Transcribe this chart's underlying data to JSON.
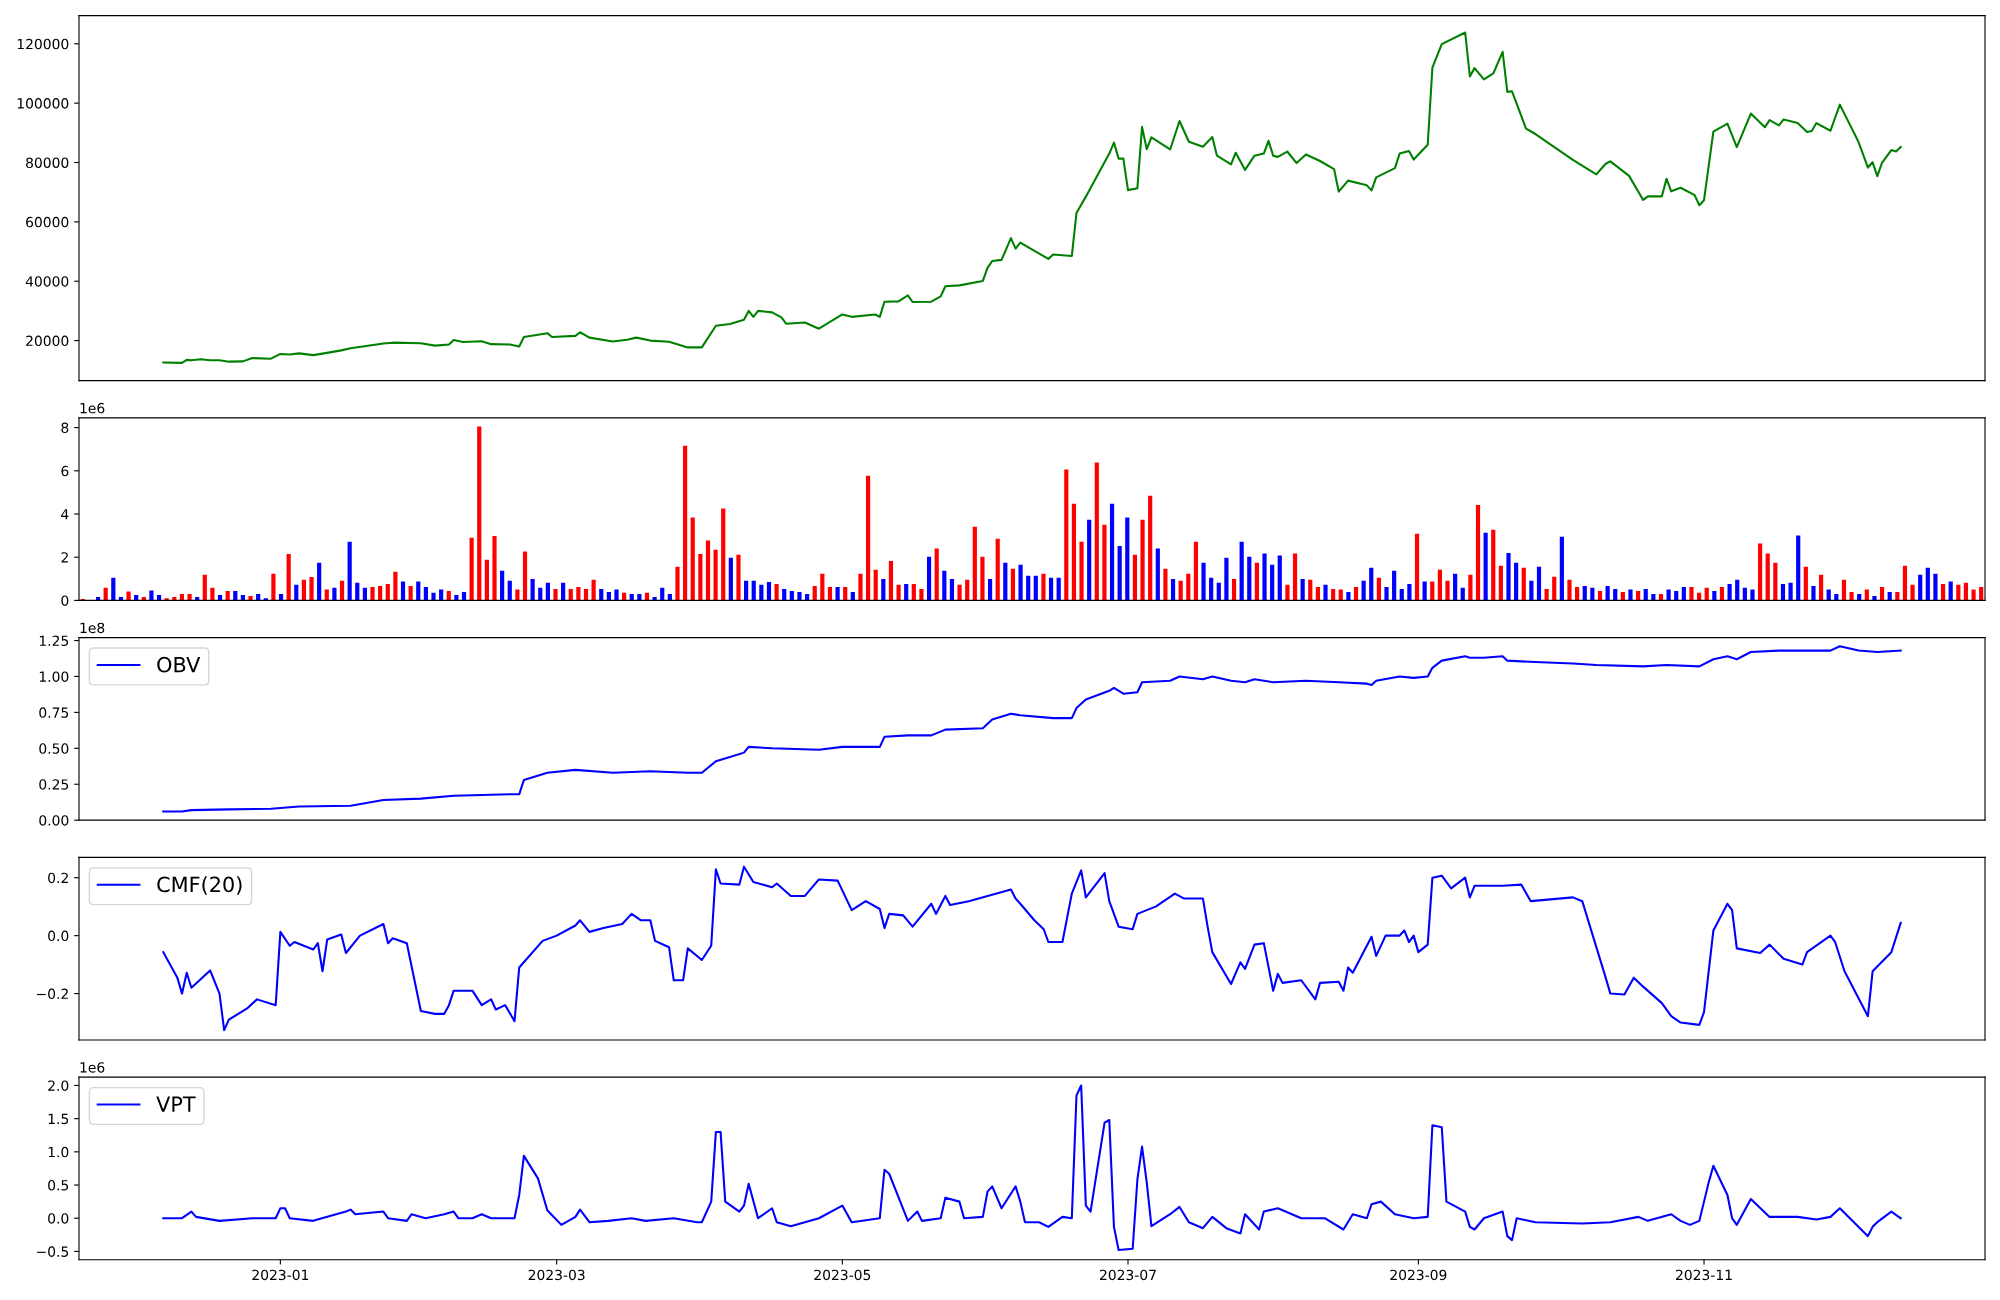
{
  "chart_data": [
    {
      "type": "line",
      "xlim": [
        "2022-11-19",
        "2023-12-31"
      ],
      "ylim": [
        6500,
        129500
      ],
      "yticks": [
        20000,
        40000,
        60000,
        80000,
        100000,
        120000
      ],
      "tick_labels": "y",
      "x": [
        "2022-12-07",
        "2022-12-11",
        "2022-12-12",
        "2022-12-13",
        "2022-12-15",
        "2022-12-17",
        "2022-12-19",
        "2022-12-21",
        "2022-12-24",
        "2022-12-26",
        "2022-12-30",
        "2023-01-01",
        "2023-01-03",
        "2023-01-05",
        "2023-01-08",
        "2023-01-10",
        "2023-01-14",
        "2023-01-16",
        "2023-01-23",
        "2023-01-25",
        "2023-01-31",
        "2023-02-03",
        "2023-02-06",
        "2023-02-07",
        "2023-02-09",
        "2023-02-13",
        "2023-02-15",
        "2023-02-19",
        "2023-02-21",
        "2023-02-22",
        "2023-02-27",
        "2023-02-28",
        "2023-03-05",
        "2023-03-06",
        "2023-03-08",
        "2023-03-13",
        "2023-03-16",
        "2023-03-18",
        "2023-03-21",
        "2023-03-25",
        "2023-03-29",
        "2023-04-01",
        "2023-04-04",
        "2023-04-07",
        "2023-04-10",
        "2023-04-11",
        "2023-04-12",
        "2023-04-13",
        "2023-04-16",
        "2023-04-18",
        "2023-04-19",
        "2023-04-23",
        "2023-04-26",
        "2023-05-01",
        "2023-05-03",
        "2023-05-08",
        "2023-05-09",
        "2023-05-10",
        "2023-05-13",
        "2023-05-15",
        "2023-05-16",
        "2023-05-20",
        "2023-05-22",
        "2023-05-23",
        "2023-05-26",
        "2023-05-31",
        "2023-06-01",
        "2023-06-02",
        "2023-06-04",
        "2023-06-06",
        "2023-06-07",
        "2023-06-08",
        "2023-06-14",
        "2023-06-15",
        "2023-06-19",
        "2023-06-20",
        "2023-06-22",
        "2023-06-27",
        "2023-06-28",
        "2023-06-29",
        "2023-06-30",
        "2023-07-01",
        "2023-07-03",
        "2023-07-04",
        "2023-07-05",
        "2023-07-06",
        "2023-07-10",
        "2023-07-12",
        "2023-07-14",
        "2023-07-17",
        "2023-07-19",
        "2023-07-20",
        "2023-07-23",
        "2023-07-24",
        "2023-07-26",
        "2023-07-28",
        "2023-07-30",
        "2023-07-31",
        "2023-08-01",
        "2023-08-02",
        "2023-08-04",
        "2023-08-06",
        "2023-08-08",
        "2023-08-11",
        "2023-08-14",
        "2023-08-15",
        "2023-08-17",
        "2023-08-21",
        "2023-08-22",
        "2023-08-23",
        "2023-08-27",
        "2023-08-28",
        "2023-08-30",
        "2023-08-31",
        "2023-09-03",
        "2023-09-04",
        "2023-09-06",
        "2023-09-11",
        "2023-09-12",
        "2023-09-13",
        "2023-09-15",
        "2023-09-17",
        "2023-09-19",
        "2023-09-20",
        "2023-09-21",
        "2023-09-24",
        "2023-09-26",
        "2023-10-04",
        "2023-10-09",
        "2023-10-11",
        "2023-10-12",
        "2023-10-16",
        "2023-10-19",
        "2023-10-20",
        "2023-10-23",
        "2023-10-24",
        "2023-10-25",
        "2023-10-27",
        "2023-10-30",
        "2023-10-31",
        "2023-11-01",
        "2023-11-03",
        "2023-11-06",
        "2023-11-08",
        "2023-11-11",
        "2023-11-14",
        "2023-11-15",
        "2023-11-17",
        "2023-11-18",
        "2023-11-21",
        "2023-11-23",
        "2023-11-24",
        "2023-11-25",
        "2023-11-28",
        "2023-11-30",
        "2023-12-04",
        "2023-12-06",
        "2023-12-07",
        "2023-12-08",
        "2023-12-09",
        "2023-12-11",
        "2023-12-12",
        "2023-12-13"
      ],
      "series": [
        {
          "color": "#008000",
          "values": [
            12600,
            12500,
            13500,
            13400,
            13700,
            13400,
            13400,
            12900,
            13000,
            14100,
            13900,
            15500,
            15300,
            15700,
            15100,
            15600,
            16700,
            17400,
            19000,
            19300,
            19100,
            18300,
            18700,
            20200,
            19500,
            19800,
            18800,
            18700,
            18000,
            21200,
            22500,
            21200,
            21600,
            22800,
            21000,
            19700,
            20300,
            21000,
            20000,
            19600,
            17700,
            17700,
            25000,
            25600,
            27000,
            30000,
            28000,
            30000,
            29500,
            27800,
            25700,
            26100,
            24000,
            28800,
            28000,
            28800,
            28000,
            33100,
            33200,
            35200,
            33000,
            33100,
            34900,
            38300,
            38600,
            40100,
            44500,
            46800,
            47200,
            54500,
            51000,
            53000,
            47500,
            49000,
            48500,
            63000,
            68500,
            83000,
            86700,
            81300,
            81300,
            70700,
            71300,
            92000,
            84500,
            88500,
            84400,
            94000,
            87000,
            85300,
            88600,
            82300,
            79400,
            83300,
            77500,
            82300,
            83000,
            87300,
            82300,
            81900,
            83700,
            79800,
            82700,
            80500,
            77800,
            70200,
            73900,
            72300,
            70600,
            75000,
            78100,
            83000,
            83900,
            81000,
            86000,
            112000,
            119900,
            123800,
            109000,
            111800,
            108000,
            110000,
            117300,
            103800,
            104000,
            91400,
            89600,
            80900,
            76000,
            79600,
            80400,
            75500,
            67400,
            68600,
            68600,
            74500,
            70300,
            71500,
            69000,
            65600,
            67300,
            90400,
            93100,
            85200,
            96500,
            91900,
            94300,
            92500,
            94500,
            93300,
            90300,
            90600,
            93300,
            90700,
            99500,
            86900,
            78300,
            80100,
            75400,
            79900,
            84200,
            83700,
            85200
          ]
        }
      ]
    },
    {
      "type": "bar",
      "ylim": [
        0,
        8.45
      ],
      "yticks": [
        0,
        2,
        4,
        6,
        8
      ],
      "tick_labels": "y",
      "annotations": [
        "1e6"
      ],
      "categories": [
        null,
        null,
        null,
        null,
        null,
        null,
        null,
        null,
        null,
        null,
        null,
        null,
        null,
        null,
        null,
        null,
        null,
        null,
        null,
        null,
        null,
        null,
        null,
        null,
        null,
        null,
        null,
        null,
        null,
        null,
        null,
        null,
        null,
        null,
        null,
        null,
        null,
        null,
        null,
        null,
        null,
        null,
        null,
        null,
        null,
        null,
        null,
        null,
        null,
        null,
        null,
        null,
        null,
        null,
        null,
        null,
        null,
        null,
        null,
        null,
        null,
        null,
        null,
        null,
        null,
        null,
        null,
        null,
        null,
        null,
        null,
        null,
        null,
        null,
        null,
        null,
        null,
        null,
        null,
        null,
        null,
        null,
        null,
        null,
        null,
        null,
        null,
        null,
        null,
        null,
        null,
        null,
        null,
        null,
        null,
        null,
        null,
        null,
        null,
        null,
        null,
        null,
        null,
        null,
        null,
        null,
        null,
        null,
        null,
        null,
        null,
        null,
        null,
        null,
        null,
        null,
        null,
        null,
        null,
        null,
        null,
        null,
        null,
        null,
        null,
        null,
        null,
        null,
        null,
        null,
        null,
        null,
        null,
        null,
        null,
        null,
        null,
        null,
        null,
        null,
        null,
        null,
        null,
        null,
        null,
        null,
        null,
        null,
        null,
        null,
        null,
        null,
        null,
        null,
        null,
        null,
        null,
        null,
        null,
        null,
        null,
        null,
        null,
        null,
        null,
        null,
        null,
        null,
        null,
        null,
        null,
        null,
        null,
        null,
        null,
        null,
        null,
        null,
        null,
        null,
        null,
        null,
        null,
        null,
        null,
        null,
        null,
        null,
        null,
        null,
        null,
        null,
        null,
        null,
        null,
        null,
        null,
        null,
        null,
        null,
        null,
        null,
        null,
        null,
        null,
        null,
        null,
        null,
        null,
        null,
        null,
        null,
        null,
        null,
        null,
        null,
        null,
        null,
        null,
        null,
        null,
        null,
        null,
        null,
        null,
        null,
        null,
        null,
        null,
        null,
        null,
        null,
        null,
        null,
        null,
        null,
        null,
        null,
        null,
        null,
        null,
        null,
        null,
        null,
        null,
        null,
        null,
        null,
        null,
        null
      ],
      "series": [
        {
          "values": [
            0.07,
            0,
            0.16,
            0.59,
            1.05,
            0.16,
            0.41,
            0.25,
            0.16,
            0.46,
            0.25,
            0.1,
            0.16,
            0.3,
            0.3,
            0.16,
            1.19,
            0.59,
            0.25,
            0.44,
            0.44,
            0.25,
            0.21,
            0.3,
            0.1,
            1.23,
            0.3,
            2.15,
            0.73,
            0.96,
            1.08,
            1.74,
            0.5,
            0.59,
            0.91,
            2.72,
            0.82,
            0.59,
            0.62,
            0.67,
            0.76,
            1.33,
            0.87,
            0.67,
            0.87,
            0.62,
            0.36,
            0.5,
            0.44,
            0.25,
            0.39,
            2.9,
            8.05,
            1.88,
            2.98,
            1.37,
            0.91,
            0.5,
            2.26,
            0.99,
            0.59,
            0.82,
            0.53,
            0.82,
            0.53,
            0.62,
            0.53,
            0.96,
            0.53,
            0.39,
            0.5,
            0.36,
            0.3,
            0.3,
            0.36,
            0.16,
            0.59,
            0.3,
            1.56,
            7.16,
            3.84,
            2.15,
            2.77,
            2.34,
            4.25,
            1.97,
            2.11,
            0.91,
            0.91,
            0.73,
            0.85,
            0.76,
            0.53,
            0.44,
            0.39,
            0.3,
            0.67,
            1.23,
            0.62,
            0.62,
            0.62,
            0.39,
            1.23,
            5.77,
            1.42,
            0.99,
            1.83,
            0.73,
            0.76,
            0.76,
            0.53,
            2.02,
            2.4,
            1.37,
            0.99,
            0.73,
            0.96,
            3.41,
            2.02,
            0.99,
            2.86,
            1.74,
            1.47,
            1.65,
            1.14,
            1.14,
            1.23,
            1.05,
            1.05,
            6.06,
            4.48,
            2.72,
            3.73,
            6.38,
            3.5,
            4.48,
            2.52,
            3.84,
            2.11,
            3.73,
            4.85,
            2.4,
            1.47,
            0.99,
            0.91,
            1.23,
            2.72,
            1.74,
            1.05,
            0.82,
            1.97,
            0.99,
            2.72,
            2.02,
            1.74,
            2.17,
            1.65,
            2.08,
            0.73,
            2.17,
            0.99,
            0.96,
            0.62,
            0.73,
            0.53,
            0.5,
            0.39,
            0.62,
            0.91,
            1.51,
            1.05,
            0.62,
            1.37,
            0.53,
            0.76,
            3.09,
            0.87,
            0.87,
            1.42,
            0.91,
            1.23,
            0.59,
            1.19,
            4.42,
            3.13,
            3.27,
            1.6,
            2.2,
            1.74,
            1.51,
            0.91,
            1.56,
            0.53,
            1.1,
            2.95,
            0.96,
            0.62,
            0.67,
            0.59,
            0.44,
            0.67,
            0.53,
            0.39,
            0.5,
            0.44,
            0.53,
            0.3,
            0.3,
            0.5,
            0.44,
            0.62,
            0.62,
            0.36,
            0.59,
            0.44,
            0.62,
            0.76,
            0.96,
            0.59,
            0.5,
            2.63,
            2.17,
            1.74,
            0.76,
            0.82,
            3.0,
            1.56,
            0.67,
            1.19,
            0.5,
            0.3,
            0.96,
            0.39,
            0.3,
            0.5,
            0.21,
            0.62,
            0.39,
            0.39,
            1.6,
            0.73,
            1.19,
            1.51,
            1.23,
            0.76,
            0.87,
            0.73,
            0.82,
            0.5,
            0.62
          ],
          "colors": [
            "#ff0000",
            "#ff0000",
            "#0000ff",
            "#ff0000",
            "#0000ff",
            "#0000ff",
            "#ff0000",
            "#0000ff",
            "#ff0000",
            "#0000ff",
            "#0000ff",
            "#ff0000",
            "#ff0000",
            "#ff0000",
            "#ff0000",
            "#0000ff",
            "#ff0000",
            "#ff0000",
            "#0000ff",
            "#ff0000",
            "#0000ff",
            "#0000ff",
            "#ff0000",
            "#0000ff",
            "#0000ff",
            "#ff0000",
            "#0000ff",
            "#ff0000",
            "#0000ff",
            "#ff0000",
            "#ff0000",
            "#0000ff",
            "#ff0000",
            "#0000ff",
            "#ff0000",
            "#0000ff",
            "#0000ff",
            "#0000ff",
            "#ff0000",
            "#ff0000",
            "#ff0000",
            "#ff0000",
            "#0000ff",
            "#ff0000",
            "#0000ff",
            "#0000ff",
            "#0000ff",
            "#0000ff",
            "#ff0000",
            "#0000ff",
            "#0000ff",
            "#ff0000",
            "#ff0000",
            "#ff0000",
            "#ff0000",
            "#0000ff",
            "#0000ff",
            "#ff0000",
            "#ff0000",
            "#0000ff",
            "#0000ff",
            "#0000ff",
            "#ff0000",
            "#0000ff",
            "#ff0000",
            "#ff0000",
            "#ff0000",
            "#ff0000",
            "#0000ff",
            "#0000ff",
            "#0000ff",
            "#ff0000",
            "#0000ff",
            "#0000ff",
            "#ff0000",
            "#0000ff",
            "#0000ff",
            "#0000ff",
            "#ff0000",
            "#ff0000",
            "#ff0000",
            "#ff0000",
            "#ff0000",
            "#ff0000",
            "#ff0000",
            "#0000ff",
            "#ff0000",
            "#0000ff",
            "#0000ff",
            "#0000ff",
            "#0000ff",
            "#ff0000",
            "#0000ff",
            "#0000ff",
            "#0000ff",
            "#0000ff",
            "#ff0000",
            "#ff0000",
            "#ff0000",
            "#0000ff",
            "#ff0000",
            "#0000ff",
            "#ff0000",
            "#ff0000",
            "#ff0000",
            "#0000ff",
            "#ff0000",
            "#ff0000",
            "#0000ff",
            "#ff0000",
            "#ff0000",
            "#0000ff",
            "#ff0000",
            "#0000ff",
            "#0000ff",
            "#ff0000",
            "#ff0000",
            "#ff0000",
            "#ff0000",
            "#0000ff",
            "#ff0000",
            "#0000ff",
            "#ff0000",
            "#0000ff",
            "#0000ff",
            "#0000ff",
            "#ff0000",
            "#0000ff",
            "#0000ff",
            "#ff0000",
            "#ff0000",
            "#ff0000",
            "#0000ff",
            "#ff0000",
            "#ff0000",
            "#0000ff",
            "#0000ff",
            "#0000ff",
            "#ff0000",
            "#ff0000",
            "#ff0000",
            "#0000ff",
            "#ff0000",
            "#0000ff",
            "#ff0000",
            "#ff0000",
            "#ff0000",
            "#0000ff",
            "#0000ff",
            "#0000ff",
            "#0000ff",
            "#ff0000",
            "#0000ff",
            "#0000ff",
            "#ff0000",
            "#0000ff",
            "#0000ff",
            "#0000ff",
            "#ff0000",
            "#ff0000",
            "#0000ff",
            "#ff0000",
            "#ff0000",
            "#0000ff",
            "#ff0000",
            "#ff0000",
            "#0000ff",
            "#ff0000",
            "#0000ff",
            "#0000ff",
            "#ff0000",
            "#0000ff",
            "#0000ff",
            "#0000ff",
            "#0000ff",
            "#ff0000",
            "#0000ff",
            "#ff0000",
            "#ff0000",
            "#ff0000",
            "#0000ff",
            "#0000ff",
            "#ff0000",
            "#ff0000",
            "#0000ff",
            "#ff0000",
            "#ff0000",
            "#0000ff",
            "#0000ff",
            "#ff0000",
            "#0000ff",
            "#0000ff",
            "#ff0000",
            "#ff0000",
            "#0000ff",
            "#ff0000",
            "#ff0000",
            "#0000ff",
            "#0000ff",
            "#ff0000",
            "#0000ff",
            "#0000ff",
            "#ff0000",
            "#0000ff",
            "#ff0000",
            "#0000ff",
            "#0000ff",
            "#ff0000",
            "#0000ff",
            "#0000ff",
            "#0000ff",
            "#ff0000",
            "#ff0000",
            "#ff0000",
            "#0000ff",
            "#ff0000",
            "#0000ff",
            "#0000ff",
            "#0000ff",
            "#0000ff",
            "#ff0000",
            "#ff0000",
            "#ff0000",
            "#0000ff",
            "#0000ff",
            "#0000ff",
            "#ff0000",
            "#0000ff",
            "#ff0000",
            "#0000ff",
            "#0000ff",
            "#ff0000",
            "#ff0000",
            "#0000ff",
            "#ff0000",
            "#0000ff",
            "#ff0000",
            "#0000ff",
            "#ff0000",
            "#ff0000",
            "#ff0000",
            "#0000ff",
            "#0000ff",
            "#0000ff",
            "#ff0000",
            "#0000ff",
            "#ff0000",
            "#ff0000",
            "#ff0000",
            "#ff0000"
          ]
        }
      ]
    },
    {
      "type": "line",
      "xlim": [
        "2022-11-19",
        "2023-12-31"
      ],
      "ylim": [
        0,
        1.27
      ],
      "yticks": [
        {
          "value": 0,
          "label": "0.00"
        },
        {
          "value": 0.25,
          "label": "0.25"
        },
        {
          "value": 0.5,
          "label": "0.50"
        },
        {
          "value": 0.75,
          "label": "0.75"
        },
        {
          "value": 1.0,
          "label": "1.00"
        },
        {
          "value": 1.25,
          "label": "1.25"
        }
      ],
      "tick_labels": "y",
      "legend": "top left",
      "annotations": [
        "1e8"
      ],
      "x": [
        "2022-12-07",
        "2022-12-11",
        "2022-12-13",
        "2022-12-21",
        "2022-12-30",
        "2023-01-05",
        "2023-01-16",
        "2023-01-23",
        "2023-01-31",
        "2023-02-07",
        "2023-02-19",
        "2023-02-21",
        "2023-02-22",
        "2023-02-27",
        "2023-03-05",
        "2023-03-13",
        "2023-03-21",
        "2023-03-29",
        "2023-04-01",
        "2023-04-04",
        "2023-04-07",
        "2023-04-10",
        "2023-04-11",
        "2023-04-16",
        "2023-04-26",
        "2023-05-01",
        "2023-05-09",
        "2023-05-10",
        "2023-05-15",
        "2023-05-20",
        "2023-05-23",
        "2023-05-31",
        "2023-06-02",
        "2023-06-06",
        "2023-06-08",
        "2023-06-15",
        "2023-06-19",
        "2023-06-20",
        "2023-06-22",
        "2023-06-27",
        "2023-06-28",
        "2023-06-30",
        "2023-07-03",
        "2023-07-04",
        "2023-07-10",
        "2023-07-12",
        "2023-07-17",
        "2023-07-19",
        "2023-07-23",
        "2023-07-26",
        "2023-07-28",
        "2023-08-01",
        "2023-08-08",
        "2023-08-15",
        "2023-08-21",
        "2023-08-22",
        "2023-08-23",
        "2023-08-28",
        "2023-08-31",
        "2023-09-03",
        "2023-09-04",
        "2023-09-06",
        "2023-09-11",
        "2023-09-12",
        "2023-09-15",
        "2023-09-19",
        "2023-09-20",
        "2023-09-26",
        "2023-10-04",
        "2023-10-09",
        "2023-10-19",
        "2023-10-24",
        "2023-10-31",
        "2023-11-03",
        "2023-11-06",
        "2023-11-08",
        "2023-11-11",
        "2023-11-17",
        "2023-11-28",
        "2023-11-30",
        "2023-12-04",
        "2023-12-08",
        "2023-12-13"
      ],
      "series": [
        {
          "name": "OBV",
          "color": "#0000ff",
          "values": [
            0.06,
            0.06,
            0.07,
            0.075,
            0.08,
            0.095,
            0.1,
            0.14,
            0.15,
            0.17,
            0.18,
            0.18,
            0.28,
            0.33,
            0.35,
            0.33,
            0.34,
            0.33,
            0.33,
            0.41,
            0.44,
            0.47,
            0.51,
            0.5,
            0.49,
            0.51,
            0.51,
            0.58,
            0.59,
            0.59,
            0.63,
            0.64,
            0.7,
            0.74,
            0.73,
            0.71,
            0.71,
            0.78,
            0.84,
            0.9,
            0.92,
            0.88,
            0.89,
            0.96,
            0.97,
            1.0,
            0.98,
            1.0,
            0.97,
            0.96,
            0.98,
            0.96,
            0.97,
            0.96,
            0.95,
            0.94,
            0.97,
            1.0,
            0.99,
            1.0,
            1.06,
            1.11,
            1.14,
            1.13,
            1.13,
            1.14,
            1.11,
            1.1,
            1.09,
            1.08,
            1.07,
            1.08,
            1.07,
            1.12,
            1.14,
            1.12,
            1.17,
            1.18,
            1.18,
            1.21,
            1.18,
            1.17,
            1.18
          ]
        }
      ]
    },
    {
      "type": "line",
      "xlim": [
        "2022-11-19",
        "2023-12-31"
      ],
      "ylim": [
        -0.36,
        0.27
      ],
      "yticks": [
        {
          "value": -0.2,
          "label": "−0.2"
        },
        {
          "value": 0.0,
          "label": "0.0"
        },
        {
          "value": 0.2,
          "label": "0.2"
        }
      ],
      "tick_labels": "y",
      "legend": "top left",
      "x": [
        "2022-12-07",
        "2022-12-10",
        "2022-12-11",
        "2022-12-12",
        "2022-12-13",
        "2022-12-17",
        "2022-12-19",
        "2022-12-20",
        "2022-12-21",
        "2022-12-25",
        "2022-12-27",
        "2022-12-31",
        "2023-01-01",
        "2023-01-03",
        "2023-01-04",
        "2023-01-08",
        "2023-01-09",
        "2023-01-10",
        "2023-01-11",
        "2023-01-14",
        "2023-01-15",
        "2023-01-18",
        "2023-01-23",
        "2023-01-24",
        "2023-01-25",
        "2023-01-28",
        "2023-01-31",
        "2023-02-03",
        "2023-02-05",
        "2023-02-06",
        "2023-02-07",
        "2023-02-11",
        "2023-02-13",
        "2023-02-15",
        "2023-02-16",
        "2023-02-18",
        "2023-02-20",
        "2023-02-21",
        "2023-02-26",
        "2023-03-01",
        "2023-03-05",
        "2023-03-06",
        "2023-03-08",
        "2023-03-11",
        "2023-03-15",
        "2023-03-17",
        "2023-03-19",
        "2023-03-21",
        "2023-03-22",
        "2023-03-25",
        "2023-03-26",
        "2023-03-28",
        "2023-03-29",
        "2023-04-01",
        "2023-04-03",
        "2023-04-04",
        "2023-04-05",
        "2023-04-09",
        "2023-04-10",
        "2023-04-12",
        "2023-04-16",
        "2023-04-17",
        "2023-04-20",
        "2023-04-23",
        "2023-04-26",
        "2023-04-30",
        "2023-05-03",
        "2023-05-06",
        "2023-05-09",
        "2023-05-10",
        "2023-05-11",
        "2023-05-14",
        "2023-05-16",
        "2023-05-20",
        "2023-05-21",
        "2023-05-23",
        "2023-05-24",
        "2023-05-28",
        "2023-06-06",
        "2023-06-07",
        "2023-06-08",
        "2023-06-11",
        "2023-06-13",
        "2023-06-14",
        "2023-06-17",
        "2023-06-19",
        "2023-06-21",
        "2023-06-22",
        "2023-06-26",
        "2023-06-27",
        "2023-06-29",
        "2023-07-02",
        "2023-07-03",
        "2023-07-07",
        "2023-07-11",
        "2023-07-13",
        "2023-07-17",
        "2023-07-18",
        "2023-07-19",
        "2023-07-23",
        "2023-07-25",
        "2023-07-26",
        "2023-07-28",
        "2023-07-30",
        "2023-08-01",
        "2023-08-02",
        "2023-08-03",
        "2023-08-07",
        "2023-08-10",
        "2023-08-11",
        "2023-08-15",
        "2023-08-16",
        "2023-08-17",
        "2023-08-18",
        "2023-08-22",
        "2023-08-23",
        "2023-08-25",
        "2023-08-28",
        "2023-08-29",
        "2023-08-30",
        "2023-08-31",
        "2023-09-01",
        "2023-09-03",
        "2023-09-04",
        "2023-09-06",
        "2023-09-08",
        "2023-09-11",
        "2023-09-12",
        "2023-09-13",
        "2023-09-19",
        "2023-09-23",
        "2023-09-25",
        "2023-10-04",
        "2023-10-06",
        "2023-10-11",
        "2023-10-12",
        "2023-10-15",
        "2023-10-17",
        "2023-10-19",
        "2023-10-23",
        "2023-10-25",
        "2023-10-27",
        "2023-10-31",
        "2023-11-01",
        "2023-11-03",
        "2023-11-06",
        "2023-11-07",
        "2023-11-08",
        "2023-11-13",
        "2023-11-15",
        "2023-11-18",
        "2023-11-22",
        "2023-11-23",
        "2023-11-28",
        "2023-11-29",
        "2023-12-01",
        "2023-12-06",
        "2023-12-07",
        "2023-12-11",
        "2023-12-13"
      ],
      "series": [
        {
          "name": "CMF(20)",
          "color": "#0000ff",
          "values": [
            -0.057,
            -0.145,
            -0.2,
            -0.128,
            -0.18,
            -0.12,
            -0.2,
            -0.326,
            -0.29,
            -0.25,
            -0.22,
            -0.24,
            0.013,
            -0.035,
            -0.022,
            -0.048,
            -0.026,
            -0.123,
            -0.013,
            0.004,
            -0.06,
            0.0,
            0.04,
            -0.026,
            -0.009,
            -0.026,
            -0.26,
            -0.27,
            -0.27,
            -0.24,
            -0.19,
            -0.19,
            -0.24,
            -0.22,
            -0.255,
            -0.24,
            -0.295,
            -0.11,
            -0.018,
            0.0,
            0.035,
            0.053,
            0.013,
            0.026,
            0.04,
            0.075,
            0.053,
            0.053,
            -0.018,
            -0.04,
            -0.154,
            -0.154,
            -0.044,
            -0.084,
            -0.035,
            0.229,
            0.18,
            0.176,
            0.238,
            0.185,
            0.167,
            0.18,
            0.137,
            0.137,
            0.194,
            0.19,
            0.088,
            0.119,
            0.092,
            0.026,
            0.075,
            0.07,
            0.031,
            0.11,
            0.075,
            0.137,
            0.106,
            0.119,
            0.159,
            0.128,
            0.11,
            0.053,
            0.022,
            -0.022,
            -0.022,
            0.145,
            0.225,
            0.132,
            0.216,
            0.119,
            0.031,
            0.022,
            0.075,
            0.101,
            0.145,
            0.128,
            0.128,
            0.031,
            -0.057,
            -0.167,
            -0.092,
            -0.115,
            -0.031,
            -0.026,
            -0.19,
            -0.132,
            -0.163,
            -0.154,
            -0.22,
            -0.163,
            -0.159,
            -0.19,
            -0.11,
            -0.128,
            -0.004,
            -0.07,
            0.0,
            0.0,
            0.018,
            -0.022,
            0.0,
            -0.057,
            -0.031,
            0.2,
            0.207,
            0.163,
            0.2,
            0.132,
            0.172,
            0.172,
            0.176,
            0.119,
            0.132,
            0.119,
            -0.145,
            -0.2,
            -0.203,
            -0.145,
            -0.176,
            -0.233,
            -0.278,
            -0.3,
            -0.308,
            -0.264,
            0.018,
            0.11,
            0.088,
            -0.044,
            -0.06,
            -0.031,
            -0.08,
            -0.1,
            -0.057,
            0.0,
            -0.022,
            -0.123,
            -0.278,
            -0.123,
            -0.057,
            0.044
          ]
        }
      ]
    },
    {
      "type": "line",
      "xlim": [
        "2022-11-19",
        "2023-12-31"
      ],
      "ylim": [
        -0.625,
        2.125
      ],
      "yticks": [
        {
          "value": -0.5,
          "label": "−0.5"
        },
        {
          "value": 0,
          "label": "0.0"
        },
        {
          "value": 0.5,
          "label": "0.5"
        },
        {
          "value": 1.0,
          "label": "1.0"
        },
        {
          "value": 1.5,
          "label": "1.5"
        },
        {
          "value": 2.0,
          "label": "2.0"
        }
      ],
      "xticks": [
        {
          "value": "2023-01-01",
          "label": "2023-01"
        },
        {
          "value": "2023-03-01",
          "label": "2023-03"
        },
        {
          "value": "2023-05-01",
          "label": "2023-05"
        },
        {
          "value": "2023-07-01",
          "label": "2023-07"
        },
        {
          "value": "2023-09-01",
          "label": "2023-09"
        },
        {
          "value": "2023-11-01",
          "label": "2023-11"
        }
      ],
      "legend": "top left",
      "annotations": [
        "1e6"
      ],
      "x": [
        "2022-12-07",
        "2022-12-11",
        "2022-12-13",
        "2022-12-14",
        "2022-12-19",
        "2022-12-26",
        "2022-12-31",
        "2023-01-01",
        "2023-01-02",
        "2023-01-03",
        "2023-01-08",
        "2023-01-15",
        "2023-01-16",
        "2023-01-17",
        "2023-01-23",
        "2023-01-24",
        "2023-01-28",
        "2023-01-29",
        "2023-02-01",
        "2023-02-05",
        "2023-02-07",
        "2023-02-08",
        "2023-02-11",
        "2023-02-13",
        "2023-02-15",
        "2023-02-20",
        "2023-02-21",
        "2023-02-22",
        "2023-02-25",
        "2023-02-27",
        "2023-03-02",
        "2023-03-05",
        "2023-03-06",
        "2023-03-08",
        "2023-03-12",
        "2023-03-17",
        "2023-03-20",
        "2023-03-26",
        "2023-03-31",
        "2023-04-01",
        "2023-04-03",
        "2023-04-04",
        "2023-04-05",
        "2023-04-06",
        "2023-04-09",
        "2023-04-10",
        "2023-04-11",
        "2023-04-13",
        "2023-04-16",
        "2023-04-17",
        "2023-04-20",
        "2023-04-26",
        "2023-05-01",
        "2023-05-03",
        "2023-05-09",
        "2023-05-10",
        "2023-05-11",
        "2023-05-15",
        "2023-05-17",
        "2023-05-18",
        "2023-05-22",
        "2023-05-23",
        "2023-05-26",
        "2023-05-27",
        "2023-05-31",
        "2023-06-01",
        "2023-06-02",
        "2023-06-04",
        "2023-06-07",
        "2023-06-08",
        "2023-06-09",
        "2023-06-12",
        "2023-06-14",
        "2023-06-17",
        "2023-06-19",
        "2023-06-20",
        "2023-06-21",
        "2023-06-22",
        "2023-06-23",
        "2023-06-26",
        "2023-06-27",
        "2023-06-28",
        "2023-06-29",
        "2023-07-02",
        "2023-07-03",
        "2023-07-04",
        "2023-07-05",
        "2023-07-06",
        "2023-07-10",
        "2023-07-12",
        "2023-07-14",
        "2023-07-17",
        "2023-07-19",
        "2023-07-22",
        "2023-07-25",
        "2023-07-26",
        "2023-07-29",
        "2023-07-30",
        "2023-08-02",
        "2023-08-07",
        "2023-08-12",
        "2023-08-16",
        "2023-08-18",
        "2023-08-21",
        "2023-08-22",
        "2023-08-24",
        "2023-08-27",
        "2023-08-31",
        "2023-09-03",
        "2023-09-04",
        "2023-09-06",
        "2023-09-07",
        "2023-09-11",
        "2023-09-12",
        "2023-09-13",
        "2023-09-15",
        "2023-09-19",
        "2023-09-20",
        "2023-09-21",
        "2023-09-22",
        "2023-09-26",
        "2023-10-06",
        "2023-10-12",
        "2023-10-18",
        "2023-10-20",
        "2023-10-25",
        "2023-10-27",
        "2023-10-29",
        "2023-10-31",
        "2023-11-02",
        "2023-11-03",
        "2023-11-06",
        "2023-11-07",
        "2023-11-08",
        "2023-11-11",
        "2023-11-15",
        "2023-11-21",
        "2023-11-25",
        "2023-11-28",
        "2023-11-30",
        "2023-12-06",
        "2023-12-07",
        "2023-12-08",
        "2023-12-11",
        "2023-12-13"
      ],
      "series": [
        {
          "name": "VPT",
          "color": "#0000ff",
          "values": [
            0,
            0,
            0.1,
            0.02,
            -0.04,
            0,
            0,
            0.15,
            0.15,
            0,
            -0.04,
            0.1,
            0.13,
            0.06,
            0.1,
            0,
            -0.04,
            0.06,
            0,
            0.06,
            0.1,
            0,
            0,
            0.06,
            0,
            0,
            0.35,
            0.94,
            0.6,
            0.12,
            -0.1,
            0.02,
            0.13,
            -0.06,
            -0.04,
            0,
            -0.04,
            0,
            -0.06,
            -0.06,
            0.25,
            1.3,
            1.3,
            0.25,
            0.1,
            0.19,
            0.52,
            0,
            0.15,
            -0.06,
            -0.12,
            0,
            0.19,
            -0.06,
            0,
            0.73,
            0.67,
            -0.04,
            0.1,
            -0.04,
            0,
            0.31,
            0.25,
            0,
            0.02,
            0.4,
            0.48,
            0.15,
            0.48,
            0.25,
            -0.06,
            -0.06,
            -0.13,
            0.02,
            0,
            1.85,
            2.0,
            0.19,
            0.1,
            1.44,
            1.48,
            -0.13,
            -0.48,
            -0.46,
            0.58,
            1.08,
            0.54,
            -0.12,
            0.06,
            0.17,
            -0.06,
            -0.15,
            0.02,
            -0.15,
            -0.23,
            0.06,
            -0.17,
            0.1,
            0.15,
            0,
            0,
            -0.17,
            0.06,
            0,
            0.21,
            0.25,
            0.06,
            0,
            0.02,
            1.4,
            1.37,
            0.25,
            0.1,
            -0.13,
            -0.17,
            0,
            0.1,
            -0.27,
            -0.33,
            0,
            -0.06,
            -0.08,
            -0.06,
            0.02,
            -0.04,
            0.06,
            -0.04,
            -0.1,
            -0.04,
            0.54,
            0.79,
            0.35,
            0,
            -0.1,
            0.29,
            0.02,
            0.02,
            -0.02,
            0.02,
            0.15,
            -0.27,
            -0.13,
            -0.06,
            0.1,
            0
          ]
        }
      ]
    }
  ]
}
